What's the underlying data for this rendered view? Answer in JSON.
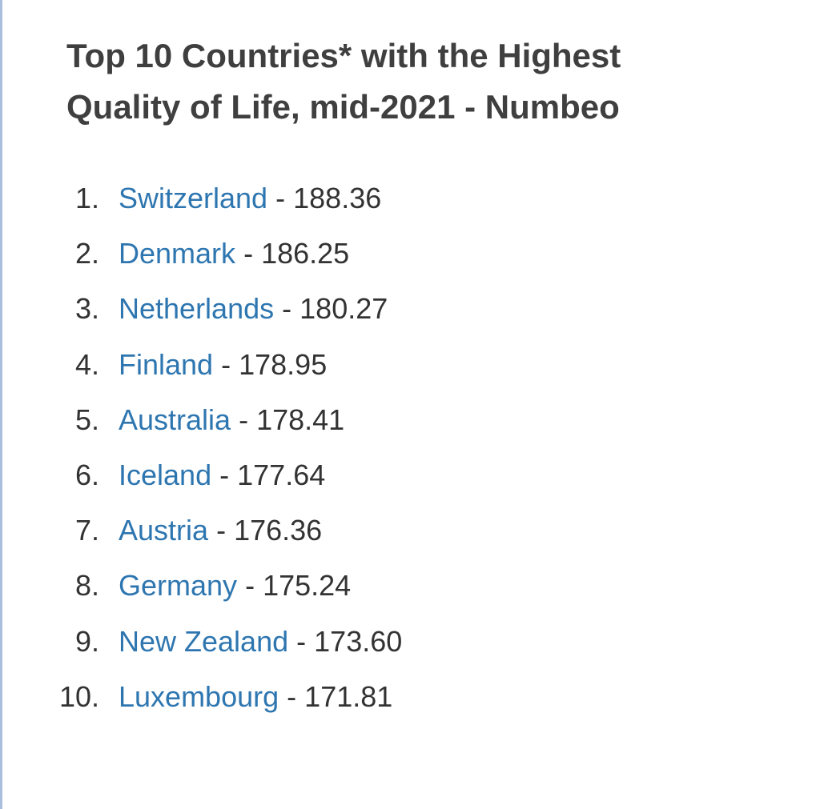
{
  "header": {
    "title_lines": [
      "Top 10 Countries* with the Highest",
      "Quality of Life, mid-2021 - Numbeo"
    ]
  },
  "list": {
    "items": [
      {
        "rank": "1.",
        "country": "Switzerland",
        "separator": "-",
        "value": "188.36"
      },
      {
        "rank": "2.",
        "country": "Denmark",
        "separator": "-",
        "value": "186.25"
      },
      {
        "rank": "3.",
        "country": "Netherlands",
        "separator": "-",
        "value": "180.27"
      },
      {
        "rank": "4.",
        "country": "Finland",
        "separator": "-",
        "value": "178.95"
      },
      {
        "rank": "5.",
        "country": "Australia",
        "separator": "-",
        "value": "178.41"
      },
      {
        "rank": "6.",
        "country": "Iceland",
        "separator": "-",
        "value": "177.64"
      },
      {
        "rank": "7.",
        "country": "Austria",
        "separator": "-",
        "value": "176.36"
      },
      {
        "rank": "8.",
        "country": "Germany",
        "separator": "-",
        "value": "175.24"
      },
      {
        "rank": "9.",
        "country": "New Zealand",
        "separator": "-",
        "value": "173.60"
      },
      {
        "rank": "10.",
        "country": "Luxembourg",
        "separator": "-",
        "value": "171.81"
      }
    ]
  }
}
